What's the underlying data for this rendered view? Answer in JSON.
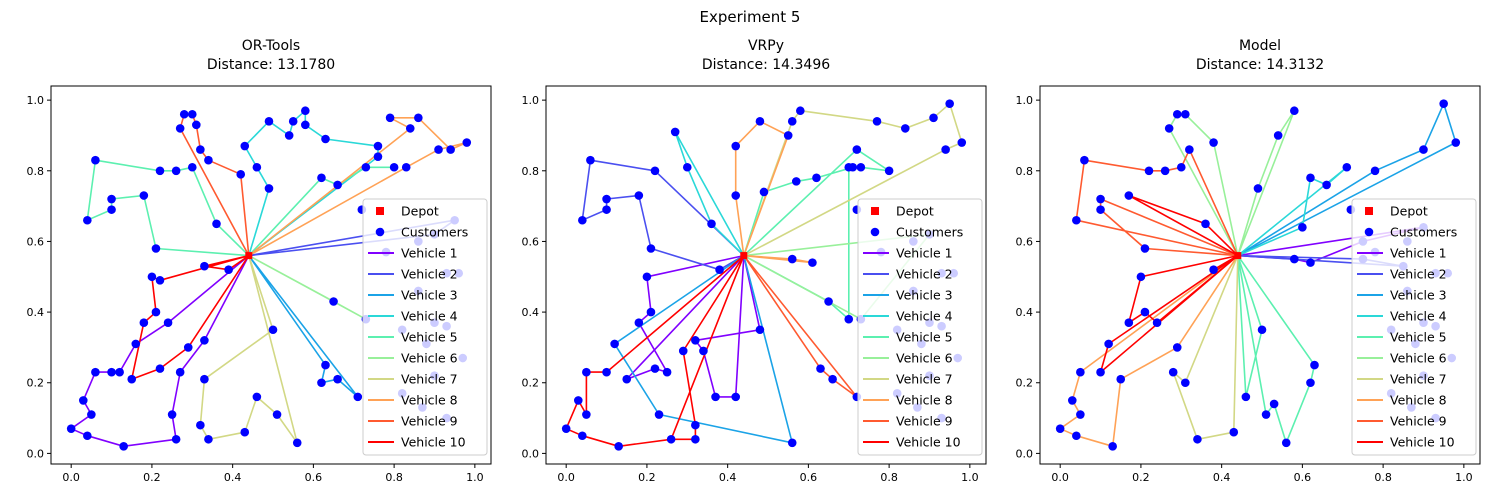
{
  "figure": {
    "suptitle": "Experiment 5"
  },
  "chart_data": [
    {
      "type": "route_map",
      "title_line1": "OR-Tools",
      "title_line2": "Distance: 13.1780",
      "xlim": [
        -0.05,
        1.04
      ],
      "ylim": [
        -0.03,
        1.04
      ],
      "xticks": [
        "0.0",
        "0.2",
        "0.4",
        "0.6",
        "0.8",
        "1.0"
      ],
      "yticks": [
        "0.0",
        "0.2",
        "0.4",
        "0.6",
        "0.8",
        "1.0"
      ],
      "legend": {
        "position": "center-right",
        "depot": "Depot",
        "customers": "Customers",
        "vehicles": [
          "Vehicle 1",
          "Vehicle 2",
          "Vehicle 3",
          "Vehicle 4",
          "Vehicle 5",
          "Vehicle 6",
          "Vehicle 7",
          "Vehicle 8",
          "Vehicle 9",
          "Vehicle 10"
        ]
      },
      "routes": [
        [
          [
            0.44,
            0.56
          ],
          [
            0.24,
            0.37
          ],
          [
            0.16,
            0.31
          ],
          [
            0.12,
            0.23
          ],
          [
            0.1,
            0.23
          ],
          [
            0.06,
            0.23
          ],
          [
            0.03,
            0.15
          ],
          [
            0.05,
            0.11
          ],
          [
            0.0,
            0.07
          ],
          [
            0.04,
            0.05
          ],
          [
            0.13,
            0.02
          ],
          [
            0.26,
            0.04
          ],
          [
            0.25,
            0.11
          ],
          [
            0.27,
            0.23
          ],
          [
            0.33,
            0.32
          ],
          [
            0.44,
            0.56
          ]
        ],
        [
          [
            0.44,
            0.56
          ],
          [
            0.9,
            0.62
          ],
          [
            0.95,
            0.66
          ],
          [
            0.44,
            0.56
          ]
        ],
        [
          [
            0.44,
            0.56
          ],
          [
            0.63,
            0.25
          ],
          [
            0.62,
            0.2
          ],
          [
            0.66,
            0.21
          ],
          [
            0.71,
            0.16
          ],
          [
            0.44,
            0.56
          ]
        ],
        [
          [
            0.44,
            0.56
          ],
          [
            0.49,
            0.75
          ],
          [
            0.46,
            0.81
          ],
          [
            0.43,
            0.87
          ],
          [
            0.49,
            0.94
          ],
          [
            0.54,
            0.9
          ],
          [
            0.55,
            0.94
          ],
          [
            0.58,
            0.97
          ],
          [
            0.58,
            0.93
          ],
          [
            0.63,
            0.89
          ],
          [
            0.76,
            0.87
          ],
          [
            0.76,
            0.84
          ],
          [
            0.44,
            0.56
          ]
        ],
        [
          [
            0.44,
            0.56
          ],
          [
            0.21,
            0.58
          ],
          [
            0.18,
            0.73
          ],
          [
            0.1,
            0.72
          ],
          [
            0.1,
            0.69
          ],
          [
            0.04,
            0.66
          ],
          [
            0.06,
            0.83
          ],
          [
            0.22,
            0.8
          ],
          [
            0.26,
            0.8
          ],
          [
            0.3,
            0.81
          ],
          [
            0.36,
            0.65
          ],
          [
            0.44,
            0.56
          ],
          [
            0.62,
            0.78
          ],
          [
            0.66,
            0.76
          ],
          [
            0.73,
            0.81
          ],
          [
            0.8,
            0.81
          ]
        ],
        [
          [
            0.44,
            0.56
          ],
          [
            0.65,
            0.43
          ],
          [
            0.73,
            0.38
          ],
          [
            0.44,
            0.56
          ]
        ],
        [
          [
            0.44,
            0.56
          ],
          [
            0.5,
            0.35
          ],
          [
            0.33,
            0.21
          ],
          [
            0.32,
            0.08
          ],
          [
            0.34,
            0.04
          ],
          [
            0.43,
            0.06
          ],
          [
            0.46,
            0.16
          ],
          [
            0.51,
            0.11
          ],
          [
            0.56,
            0.03
          ],
          [
            0.44,
            0.56
          ]
        ],
        [
          [
            0.44,
            0.56
          ],
          [
            0.83,
            0.81
          ],
          [
            0.91,
            0.86
          ],
          [
            0.98,
            0.88
          ],
          [
            0.94,
            0.86
          ],
          [
            0.86,
            0.95
          ],
          [
            0.79,
            0.95
          ],
          [
            0.84,
            0.92
          ],
          [
            0.44,
            0.56
          ]
        ],
        [
          [
            0.44,
            0.56
          ],
          [
            0.42,
            0.79
          ],
          [
            0.34,
            0.83
          ],
          [
            0.32,
            0.86
          ],
          [
            0.31,
            0.93
          ],
          [
            0.3,
            0.96
          ],
          [
            0.28,
            0.96
          ],
          [
            0.27,
            0.92
          ],
          [
            0.44,
            0.56
          ]
        ],
        [
          [
            0.44,
            0.56
          ],
          [
            0.33,
            0.53
          ],
          [
            0.39,
            0.52
          ],
          [
            0.44,
            0.56
          ],
          [
            0.22,
            0.49
          ],
          [
            0.2,
            0.5
          ],
          [
            0.21,
            0.4
          ],
          [
            0.18,
            0.37
          ],
          [
            0.15,
            0.21
          ],
          [
            0.22,
            0.24
          ],
          [
            0.29,
            0.3
          ],
          [
            0.44,
            0.56
          ]
        ]
      ]
    },
    {
      "type": "route_map",
      "title_line1": "VRPy",
      "title_line2": "Distance: 14.3496",
      "xlim": [
        -0.05,
        1.04
      ],
      "ylim": [
        -0.03,
        1.04
      ],
      "xticks": [
        "0.0",
        "0.2",
        "0.4",
        "0.6",
        "0.8",
        "1.0"
      ],
      "yticks": [
        "0.0",
        "0.2",
        "0.4",
        "0.6",
        "0.8",
        "1.0"
      ],
      "legend": {
        "position": "center-right",
        "depot": "Depot",
        "customers": "Customers",
        "vehicles": [
          "Vehicle 1",
          "Vehicle 2",
          "Vehicle 3",
          "Vehicle 4",
          "Vehicle 5",
          "Vehicle 6",
          "Vehicle 7",
          "Vehicle 8",
          "Vehicle 9",
          "Vehicle 10"
        ]
      },
      "routes": [
        [
          [
            0.44,
            0.56
          ],
          [
            0.2,
            0.5
          ],
          [
            0.21,
            0.4
          ],
          [
            0.18,
            0.37
          ],
          [
            0.25,
            0.23
          ],
          [
            0.22,
            0.24
          ],
          [
            0.15,
            0.21
          ],
          [
            0.44,
            0.56
          ],
          [
            0.48,
            0.35
          ],
          [
            0.32,
            0.32
          ],
          [
            0.34,
            0.29
          ],
          [
            0.37,
            0.16
          ],
          [
            0.42,
            0.16
          ],
          [
            0.44,
            0.56
          ]
        ],
        [
          [
            0.44,
            0.56
          ],
          [
            0.38,
            0.52
          ],
          [
            0.21,
            0.58
          ],
          [
            0.18,
            0.73
          ],
          [
            0.1,
            0.72
          ],
          [
            0.1,
            0.69
          ],
          [
            0.04,
            0.66
          ],
          [
            0.06,
            0.83
          ],
          [
            0.22,
            0.8
          ],
          [
            0.44,
            0.56
          ]
        ],
        [
          [
            0.44,
            0.56
          ],
          [
            0.12,
            0.31
          ],
          [
            0.23,
            0.11
          ],
          [
            0.56,
            0.03
          ],
          [
            0.44,
            0.56
          ]
        ],
        [
          [
            0.44,
            0.56
          ],
          [
            0.36,
            0.65
          ],
          [
            0.3,
            0.81
          ],
          [
            0.27,
            0.91
          ],
          [
            0.44,
            0.56
          ]
        ],
        [
          [
            0.44,
            0.56
          ],
          [
            0.49,
            0.74
          ],
          [
            0.57,
            0.77
          ],
          [
            0.62,
            0.78
          ],
          [
            0.71,
            0.81
          ],
          [
            0.73,
            0.81
          ],
          [
            0.8,
            0.8
          ],
          [
            0.72,
            0.86
          ],
          [
            0.44,
            0.56
          ],
          [
            0.65,
            0.43
          ],
          [
            0.7,
            0.38
          ],
          [
            0.7,
            0.81
          ]
        ],
        [
          [
            0.44,
            0.56
          ],
          [
            0.9,
            0.62
          ],
          [
            0.73,
            0.38
          ],
          [
            0.44,
            0.56
          ]
        ],
        [
          [
            0.44,
            0.56
          ],
          [
            0.56,
            0.94
          ],
          [
            0.58,
            0.97
          ],
          [
            0.77,
            0.94
          ],
          [
            0.84,
            0.92
          ],
          [
            0.91,
            0.95
          ],
          [
            0.95,
            0.99
          ],
          [
            0.98,
            0.88
          ],
          [
            0.94,
            0.86
          ],
          [
            0.44,
            0.56
          ]
        ],
        [
          [
            0.44,
            0.56
          ],
          [
            0.42,
            0.73
          ],
          [
            0.42,
            0.87
          ],
          [
            0.48,
            0.94
          ],
          [
            0.55,
            0.9
          ],
          [
            0.44,
            0.56
          ],
          [
            0.56,
            0.55
          ],
          [
            0.61,
            0.54
          ],
          [
            0.44,
            0.56
          ]
        ],
        [
          [
            0.44,
            0.56
          ],
          [
            0.63,
            0.24
          ],
          [
            0.66,
            0.21
          ],
          [
            0.72,
            0.16
          ],
          [
            0.44,
            0.56
          ]
        ],
        [
          [
            0.44,
            0.56
          ],
          [
            0.26,
            0.04
          ],
          [
            0.32,
            0.04
          ],
          [
            0.32,
            0.08
          ],
          [
            0.29,
            0.29
          ],
          [
            0.44,
            0.56
          ],
          [
            0.1,
            0.23
          ],
          [
            0.05,
            0.23
          ],
          [
            0.05,
            0.11
          ],
          [
            0.03,
            0.15
          ],
          [
            0.0,
            0.07
          ],
          [
            0.04,
            0.05
          ],
          [
            0.13,
            0.02
          ],
          [
            0.26,
            0.04
          ]
        ]
      ]
    },
    {
      "type": "route_map",
      "title_line1": "Model",
      "title_line2": "Distance: 14.3132",
      "xlim": [
        -0.05,
        1.04
      ],
      "ylim": [
        -0.03,
        1.04
      ],
      "xticks": [
        "0.0",
        "0.2",
        "0.4",
        "0.6",
        "0.8",
        "1.0"
      ],
      "yticks": [
        "0.0",
        "0.2",
        "0.4",
        "0.6",
        "0.8",
        "1.0"
      ],
      "legend": {
        "position": "center-right",
        "depot": "Depot",
        "customers": "Customers",
        "vehicles": [
          "Vehicle 1",
          "Vehicle 2",
          "Vehicle 3",
          "Vehicle 4",
          "Vehicle 5",
          "Vehicle 6",
          "Vehicle 7",
          "Vehicle 8",
          "Vehicle 9",
          "Vehicle 10"
        ]
      },
      "routes": [
        [
          [
            0.44,
            0.56
          ],
          [
            0.58,
            0.55
          ],
          [
            0.62,
            0.54
          ],
          [
            0.75,
            0.6
          ],
          [
            0.9,
            0.64
          ],
          [
            0.44,
            0.56
          ]
        ],
        [
          [
            0.44,
            0.56
          ],
          [
            0.75,
            0.55
          ],
          [
            0.85,
            0.53
          ],
          [
            0.44,
            0.56
          ]
        ],
        [
          [
            0.44,
            0.56
          ],
          [
            0.78,
            0.8
          ],
          [
            0.9,
            0.86
          ],
          [
            0.95,
            0.99
          ],
          [
            0.98,
            0.88
          ],
          [
            0.44,
            0.56
          ]
        ],
        [
          [
            0.44,
            0.56
          ],
          [
            0.6,
            0.64
          ],
          [
            0.62,
            0.78
          ],
          [
            0.66,
            0.76
          ],
          [
            0.71,
            0.81
          ],
          [
            0.44,
            0.56
          ]
        ],
        [
          [
            0.44,
            0.56
          ],
          [
            0.63,
            0.25
          ],
          [
            0.62,
            0.2
          ],
          [
            0.56,
            0.03
          ],
          [
            0.53,
            0.14
          ],
          [
            0.51,
            0.11
          ],
          [
            0.44,
            0.56
          ],
          [
            0.46,
            0.16
          ],
          [
            0.5,
            0.35
          ],
          [
            0.44,
            0.56
          ]
        ],
        [
          [
            0.44,
            0.56
          ],
          [
            0.38,
            0.88
          ],
          [
            0.31,
            0.96
          ],
          [
            0.29,
            0.96
          ],
          [
            0.27,
            0.92
          ],
          [
            0.44,
            0.56
          ],
          [
            0.49,
            0.75
          ],
          [
            0.54,
            0.9
          ],
          [
            0.58,
            0.97
          ],
          [
            0.44,
            0.56
          ]
        ],
        [
          [
            0.44,
            0.56
          ],
          [
            0.31,
            0.2
          ],
          [
            0.28,
            0.23
          ],
          [
            0.34,
            0.04
          ],
          [
            0.43,
            0.06
          ],
          [
            0.44,
            0.56
          ]
        ],
        [
          [
            0.44,
            0.56
          ],
          [
            0.05,
            0.23
          ],
          [
            0.03,
            0.15
          ],
          [
            0.05,
            0.11
          ],
          [
            0.0,
            0.07
          ],
          [
            0.04,
            0.05
          ],
          [
            0.13,
            0.02
          ],
          [
            0.15,
            0.21
          ],
          [
            0.29,
            0.3
          ],
          [
            0.44,
            0.56
          ]
        ],
        [
          [
            0.44,
            0.56
          ],
          [
            0.04,
            0.66
          ],
          [
            0.06,
            0.83
          ],
          [
            0.22,
            0.8
          ],
          [
            0.26,
            0.8
          ],
          [
            0.3,
            0.81
          ],
          [
            0.32,
            0.86
          ],
          [
            0.44,
            0.56
          ],
          [
            0.21,
            0.58
          ],
          [
            0.1,
            0.69
          ],
          [
            0.1,
            0.72
          ],
          [
            0.44,
            0.56
          ]
        ],
        [
          [
            0.44,
            0.56
          ],
          [
            0.38,
            0.52
          ],
          [
            0.44,
            0.56
          ],
          [
            0.17,
            0.73
          ],
          [
            0.36,
            0.65
          ],
          [
            0.44,
            0.56
          ],
          [
            0.2,
            0.5
          ],
          [
            0.17,
            0.37
          ],
          [
            0.21,
            0.4
          ],
          [
            0.24,
            0.37
          ],
          [
            0.44,
            0.56
          ],
          [
            0.12,
            0.31
          ],
          [
            0.1,
            0.23
          ],
          [
            0.44,
            0.56
          ]
        ]
      ]
    }
  ]
}
